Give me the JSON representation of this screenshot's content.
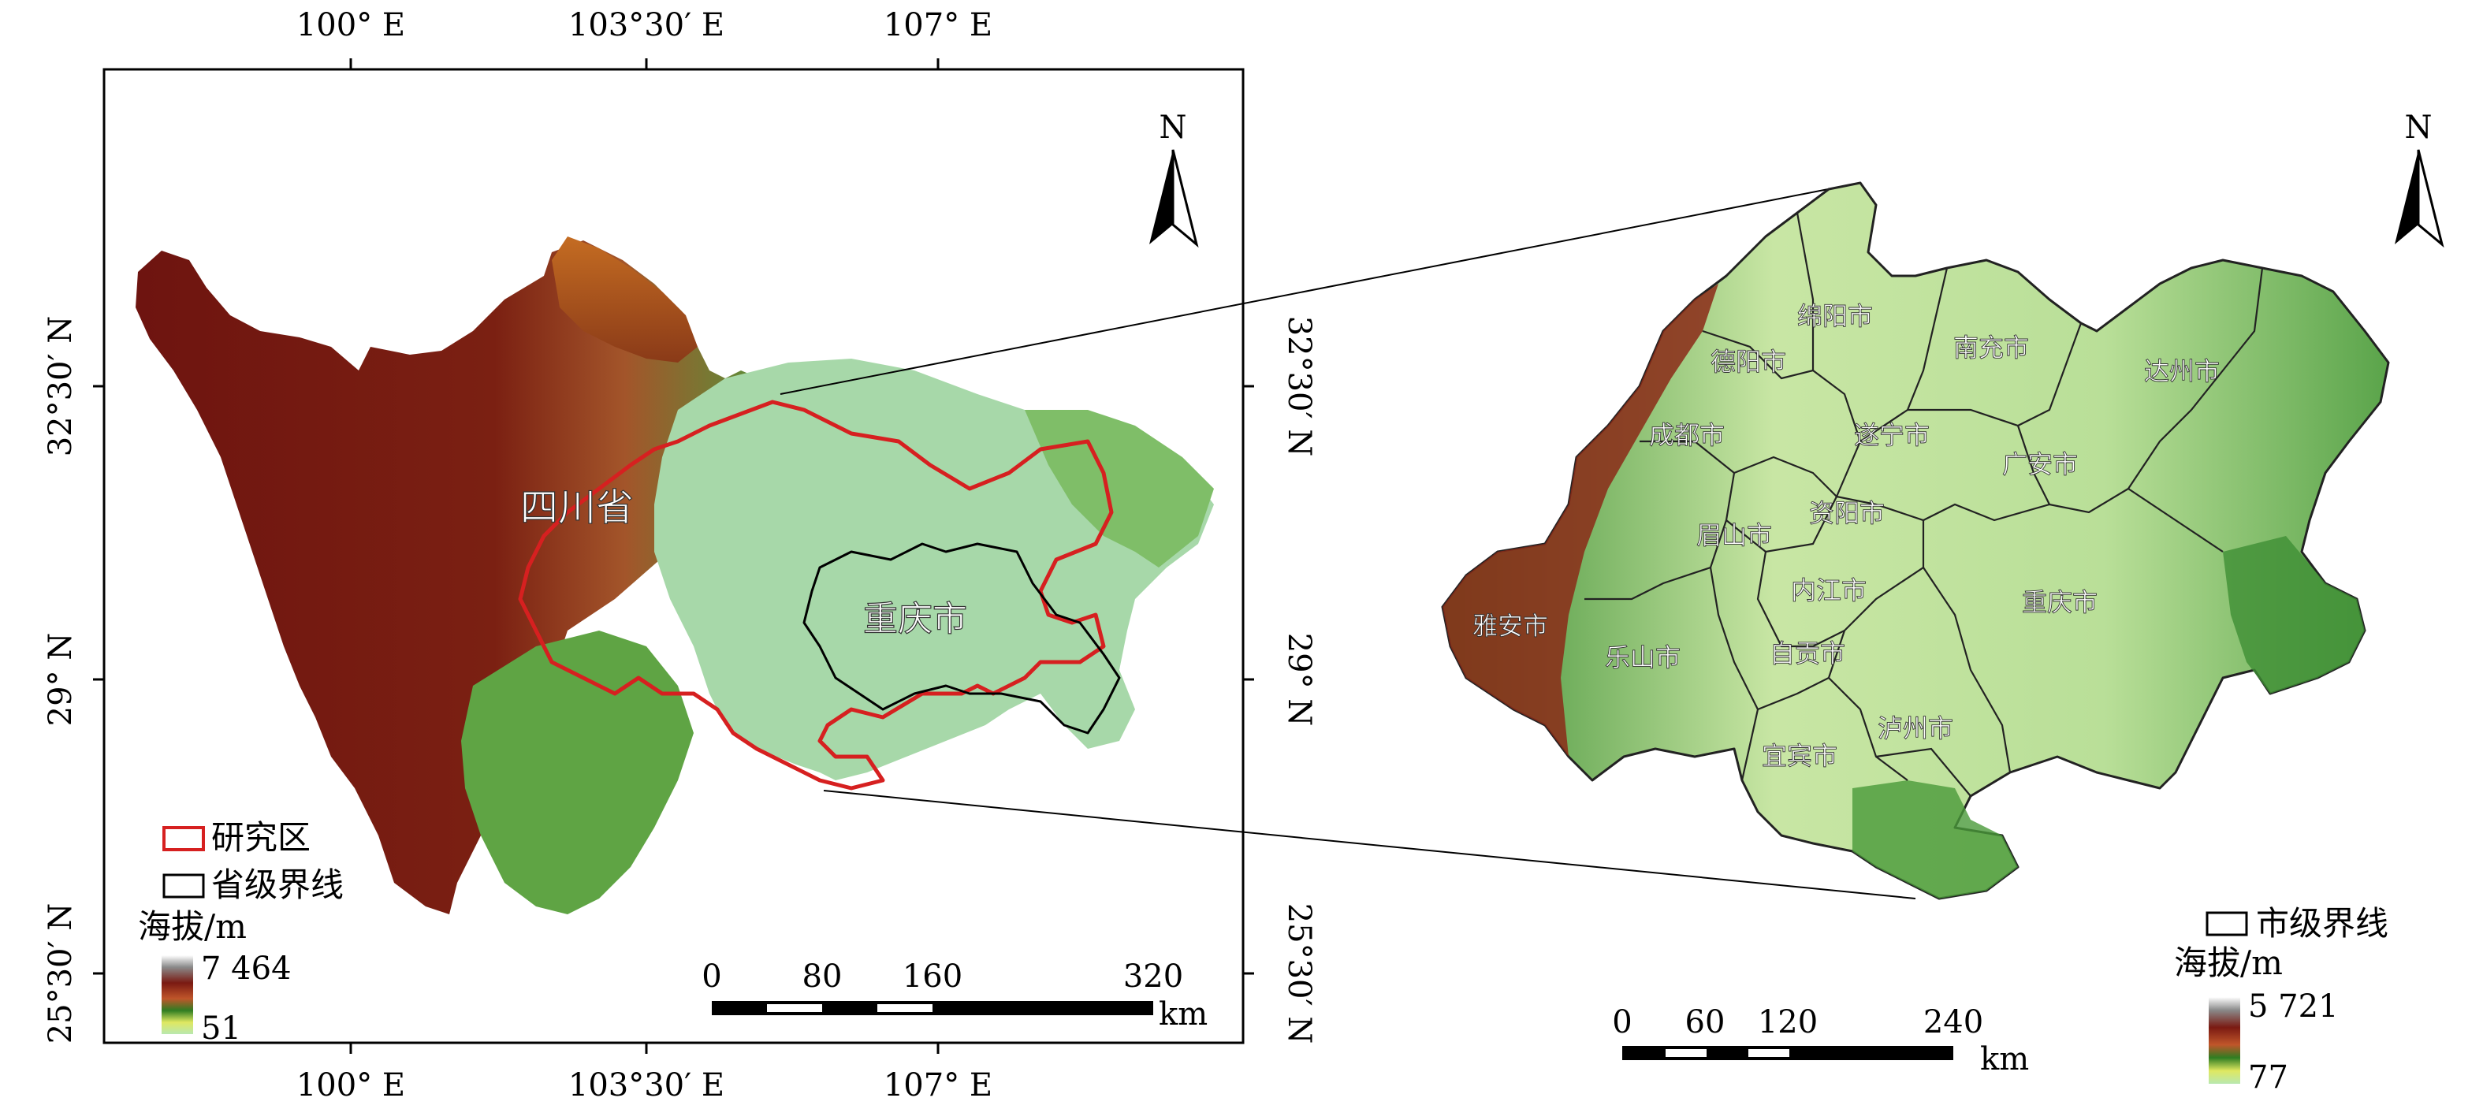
{
  "left_map": {
    "top_axis": [
      "100° E",
      "103°30′ E",
      "107° E"
    ],
    "bottom_axis": [
      "100° E",
      "103°30′ E",
      "107° E"
    ],
    "left_axis": [
      "32°30′ N",
      "29° N",
      "25°30′ N"
    ],
    "right_axis": [
      "32°30′ N",
      "29° N",
      "25°30′ N"
    ],
    "north_label": "N",
    "province_label": "四川省",
    "city_label": "重庆市",
    "legend": {
      "study_area": "研究区",
      "province_boundary": "省级界线",
      "elevation_title": "海拔/m",
      "elevation_max": "7 464",
      "elevation_min": "51"
    },
    "scale_bar": {
      "ticks": [
        "0",
        "80",
        "160",
        "320"
      ],
      "unit": "km"
    }
  },
  "right_map": {
    "north_label": "N",
    "cities": [
      "绵阳市",
      "德阳市",
      "南充市",
      "达州市",
      "成都市",
      "遂宁市",
      "广安市",
      "眉山市",
      "资阳市",
      "雅安市",
      "乐山市",
      "内江市",
      "重庆市",
      "自贡市",
      "泸州市",
      "宜宾市"
    ],
    "legend": {
      "city_boundary": "市级界线",
      "elevation_title": "海拔/m",
      "elevation_max": "5 721",
      "elevation_min": "77"
    },
    "scale_bar": {
      "ticks": [
        "0",
        "60",
        "120",
        "240"
      ],
      "unit": "km"
    }
  },
  "colors": {
    "high": "#7a1a12",
    "mid_high": "#b86a2a",
    "mid": "#4f9b3e",
    "low": "#a9d98c",
    "basin": "#a8d8a8",
    "study_outline": "#d62020",
    "frame": "#000000"
  }
}
